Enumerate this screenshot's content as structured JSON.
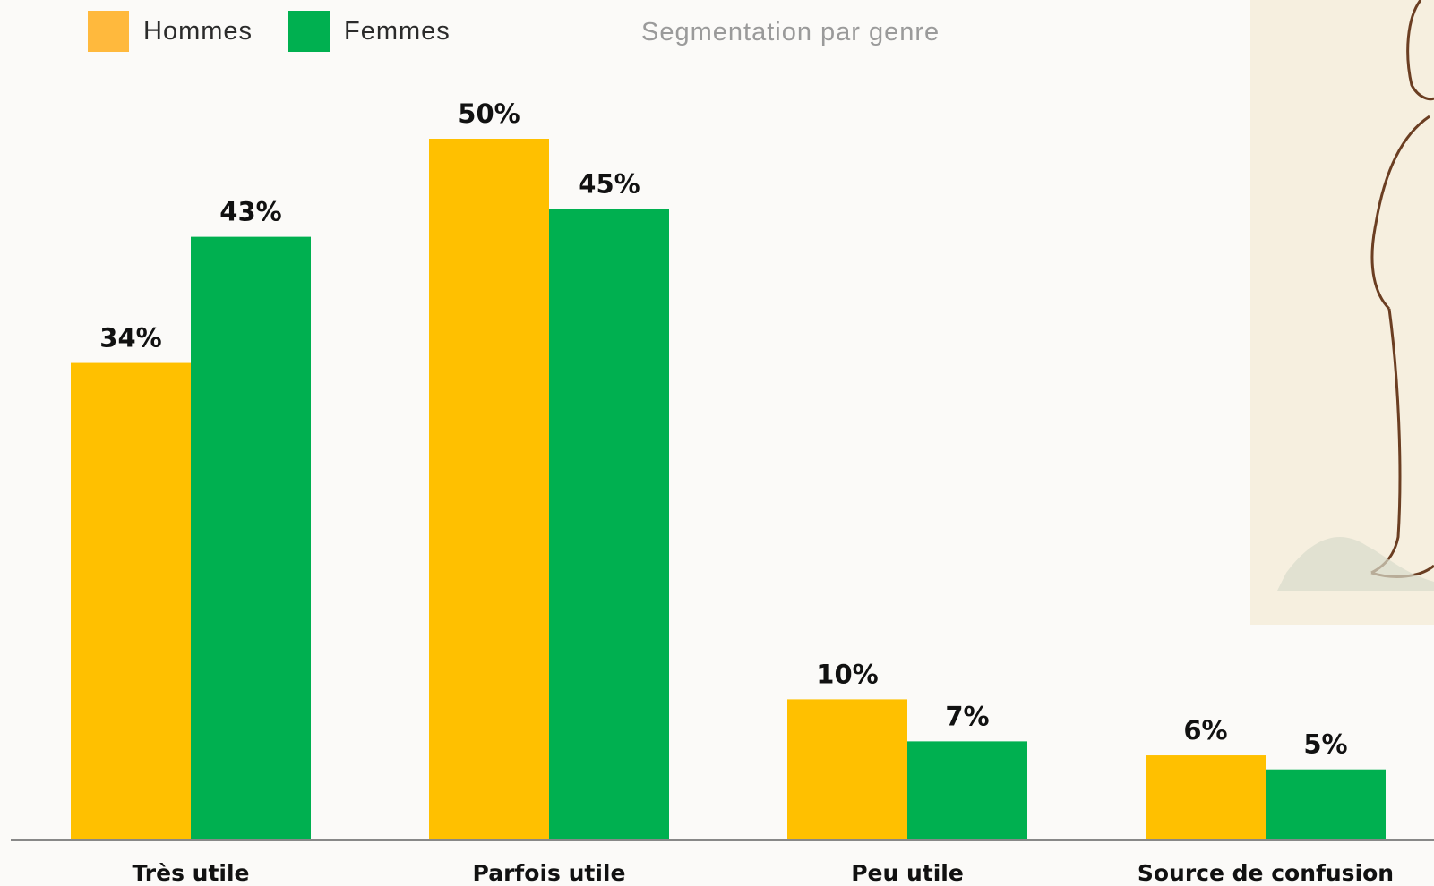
{
  "legend": {
    "items": [
      {
        "label": "Hommes",
        "color": "#ffb93d"
      },
      {
        "label": "Femmes",
        "color": "#00b050"
      }
    ]
  },
  "subtitle": "Segmentation par genre",
  "chart_data": {
    "type": "bar",
    "categories": [
      "Très utile",
      "Parfois utile",
      "Peu utile",
      "Source de confusion"
    ],
    "series": [
      {
        "name": "Hommes",
        "color": "#ffc000",
        "values": [
          34,
          50,
          10,
          6
        ],
        "labels": [
          "34%",
          "50%",
          "10%",
          "6%"
        ]
      },
      {
        "name": "Femmes",
        "color": "#00b050",
        "values": [
          43,
          45,
          7,
          5
        ],
        "labels": [
          "43%",
          "45%",
          "7%",
          "5%"
        ]
      }
    ],
    "ylim": [
      0,
      50
    ],
    "grid": false,
    "legend_position": "top-left"
  }
}
